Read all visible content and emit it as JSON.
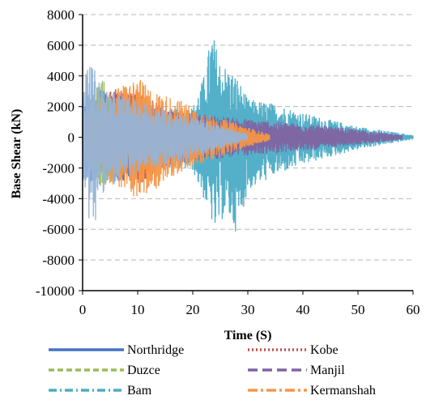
{
  "chart_data": {
    "type": "line",
    "title": "",
    "xlabel": "Time (S)",
    "ylabel": "Base Shear (kN)",
    "xlim": [
      0,
      60
    ],
    "ylim": [
      -10000,
      8000
    ],
    "xticks": [
      0,
      10,
      20,
      30,
      40,
      50,
      60
    ],
    "yticks": [
      8000,
      6000,
      4000,
      2000,
      0,
      -2000,
      -4000,
      -6000,
      -8000,
      -10000
    ],
    "grid": "horizontal dashed",
    "legend_position": "bottom",
    "series": [
      {
        "name": "Northridge",
        "color": "#4472c4",
        "dash": "solid",
        "duration": 15,
        "envelope": [
          [
            0,
            2800
          ],
          [
            2,
            3200
          ],
          [
            5,
            3000
          ],
          [
            8,
            2900
          ],
          [
            10,
            2600
          ],
          [
            12,
            1800
          ],
          [
            14,
            1000
          ],
          [
            15,
            200
          ]
        ],
        "neg_envelope": [
          [
            0,
            -2800
          ],
          [
            3,
            -3000
          ],
          [
            6,
            -2900
          ],
          [
            9,
            -2700
          ],
          [
            12,
            -1700
          ],
          [
            15,
            -200
          ]
        ]
      },
      {
        "name": "Kobe",
        "color": "#c0504d",
        "dash": "dotted",
        "duration": 20,
        "envelope": [
          [
            0,
            1500
          ],
          [
            4,
            2800
          ],
          [
            6,
            3200
          ],
          [
            10,
            3000
          ],
          [
            14,
            2200
          ],
          [
            18,
            1200
          ],
          [
            20,
            300
          ]
        ],
        "neg_envelope": [
          [
            0,
            -1500
          ],
          [
            5,
            -2800
          ],
          [
            10,
            -3200
          ],
          [
            15,
            -2000
          ],
          [
            20,
            -300
          ]
        ]
      },
      {
        "name": "Duzce",
        "color": "#9bbb59",
        "dash": "dashed",
        "duration": 16,
        "envelope": [
          [
            0,
            900
          ],
          [
            2,
            3200
          ],
          [
            4,
            3900
          ],
          [
            6,
            2400
          ],
          [
            10,
            1500
          ],
          [
            16,
            300
          ]
        ],
        "neg_envelope": [
          [
            0,
            -900
          ],
          [
            3,
            -3300
          ],
          [
            5,
            -3100
          ],
          [
            8,
            -1800
          ],
          [
            16,
            -300
          ]
        ]
      },
      {
        "name": "Manjil",
        "color": "#8064a2",
        "dash": "longdash",
        "duration": 58,
        "envelope": [
          [
            0,
            1200
          ],
          [
            10,
            2200
          ],
          [
            20,
            1600
          ],
          [
            30,
            1200
          ],
          [
            40,
            900
          ],
          [
            50,
            500
          ],
          [
            58,
            150
          ]
        ],
        "neg_envelope": [
          [
            0,
            -1200
          ],
          [
            10,
            -2300
          ],
          [
            20,
            -1600
          ],
          [
            30,
            -1200
          ],
          [
            40,
            -900
          ],
          [
            50,
            -500
          ],
          [
            58,
            -150
          ]
        ]
      },
      {
        "name": "Bam",
        "color": "#4bacc6",
        "dash": "dashdot",
        "duration": 60,
        "envelope": [
          [
            0,
            1200
          ],
          [
            10,
            1600
          ],
          [
            20,
            2000
          ],
          [
            22,
            4000
          ],
          [
            23.5,
            7000
          ],
          [
            25,
            5000
          ],
          [
            28,
            4000
          ],
          [
            30,
            2500
          ],
          [
            35,
            2200
          ],
          [
            40,
            1600
          ],
          [
            50,
            700
          ],
          [
            60,
            150
          ]
        ],
        "neg_envelope": [
          [
            0,
            -1200
          ],
          [
            10,
            -1700
          ],
          [
            20,
            -2200
          ],
          [
            23,
            -5000
          ],
          [
            24,
            -6300
          ],
          [
            26,
            -5000
          ],
          [
            28,
            -6300
          ],
          [
            30,
            -3500
          ],
          [
            35,
            -2500
          ],
          [
            40,
            -1800
          ],
          [
            50,
            -800
          ],
          [
            60,
            -150
          ]
        ]
      },
      {
        "name": "Kermanshah",
        "color": "#f79646",
        "dash": "longdashdot",
        "duration": 34,
        "envelope": [
          [
            0,
            1500
          ],
          [
            5,
            3000
          ],
          [
            10,
            3900
          ],
          [
            13,
            3000
          ],
          [
            18,
            2400
          ],
          [
            22,
            1600
          ],
          [
            28,
            900
          ],
          [
            34,
            200
          ]
        ],
        "neg_envelope": [
          [
            0,
            -1500
          ],
          [
            5,
            -3000
          ],
          [
            11,
            -4200
          ],
          [
            15,
            -2800
          ],
          [
            20,
            -2000
          ],
          [
            28,
            -900
          ],
          [
            34,
            -200
          ]
        ]
      },
      {
        "name": "",
        "color": "#95b3d7",
        "dash": "solid",
        "duration": 30,
        "envelope": [
          [
            0,
            2500
          ],
          [
            1,
            5300
          ],
          [
            2,
            4600
          ],
          [
            4,
            3200
          ],
          [
            8,
            2600
          ],
          [
            12,
            2200
          ],
          [
            18,
            1600
          ],
          [
            24,
            900
          ],
          [
            30,
            200
          ]
        ],
        "neg_envelope": [
          [
            0,
            -2500
          ],
          [
            1,
            -4500
          ],
          [
            1.5,
            -7500
          ],
          [
            3,
            -3800
          ],
          [
            8,
            -2600
          ],
          [
            12,
            -2200
          ],
          [
            18,
            -1600
          ],
          [
            24,
            -900
          ],
          [
            30,
            -200
          ]
        ]
      }
    ]
  }
}
